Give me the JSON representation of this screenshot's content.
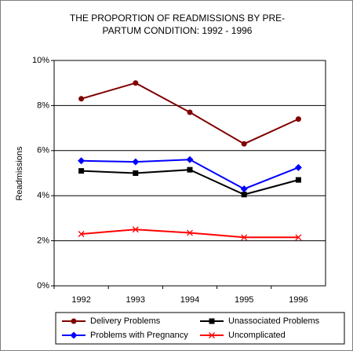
{
  "chart_data": {
    "type": "line",
    "title": "THE PROPORTION OF READMISSIONS BY PRE-PARTUM CONDITION: 1992 - 1996",
    "y_label": "Readmissions",
    "categories": [
      "1992",
      "1993",
      "1994",
      "1995",
      "1996"
    ],
    "series": [
      {
        "name": "Delivery Problems",
        "color": "#800000",
        "marker": "circle",
        "values": [
          8.3,
          9.0,
          7.7,
          6.3,
          7.4
        ]
      },
      {
        "name": "Unassociated Problems",
        "color": "#000000",
        "marker": "square",
        "values": [
          5.1,
          5.0,
          5.15,
          4.05,
          4.7
        ]
      },
      {
        "name": "Problems with Pregnancy",
        "color": "#0000ff",
        "marker": "diamond",
        "values": [
          5.55,
          5.5,
          5.6,
          4.3,
          5.25
        ]
      },
      {
        "name": "Uncomplicated",
        "color": "#ff0000",
        "marker": "x",
        "values": [
          2.3,
          2.5,
          2.35,
          2.15,
          2.15
        ]
      }
    ],
    "ylim": [
      0,
      10
    ],
    "yticks": [
      {
        "value": 0,
        "label": "0%"
      },
      {
        "value": 2,
        "label": "2%"
      },
      {
        "value": 4,
        "label": "4%"
      },
      {
        "value": 6,
        "label": "6%"
      },
      {
        "value": 8,
        "label": "8%"
      },
      {
        "value": 10,
        "label": "10%"
      }
    ],
    "grid": true,
    "legend": "bottom"
  }
}
